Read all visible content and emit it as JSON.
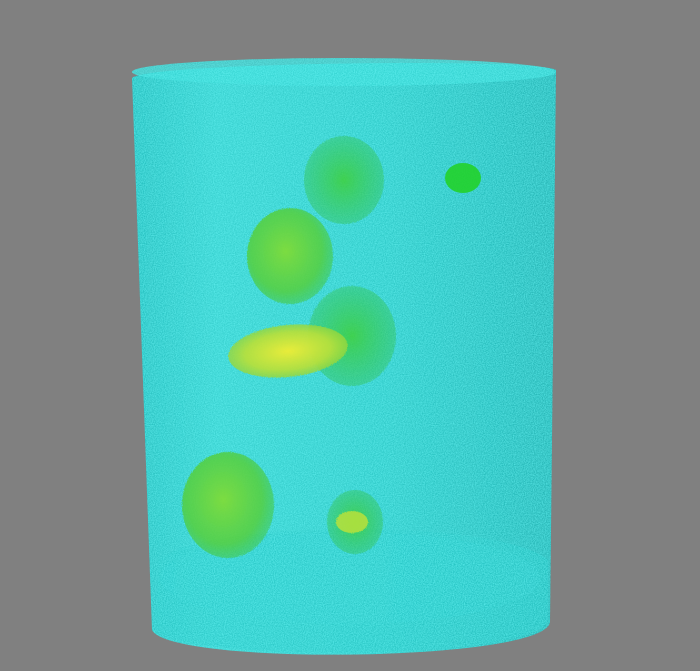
{
  "scene": {
    "background_color": "#808080",
    "cylinder_color": "#2ad2d0",
    "cylinder_shade_color": "#1fb3b2",
    "inclusion_colors": [
      "#4fcf3a",
      "#8ee04a",
      "#c8e83a",
      "#2fd23a"
    ],
    "objects": [
      {
        "name": "volume-cylinder",
        "kind": "translucent-cylinder"
      },
      {
        "name": "inclusion-top-center",
        "kind": "sphere"
      },
      {
        "name": "inclusion-small-top-right",
        "kind": "sphere"
      },
      {
        "name": "inclusion-upper-left",
        "kind": "sphere"
      },
      {
        "name": "inclusion-middle-right",
        "kind": "sphere"
      },
      {
        "name": "inclusion-ellipsoid-bright",
        "kind": "ellipsoid"
      },
      {
        "name": "inclusion-lower-left",
        "kind": "sphere"
      },
      {
        "name": "inclusion-lower-center",
        "kind": "sphere"
      }
    ]
  }
}
